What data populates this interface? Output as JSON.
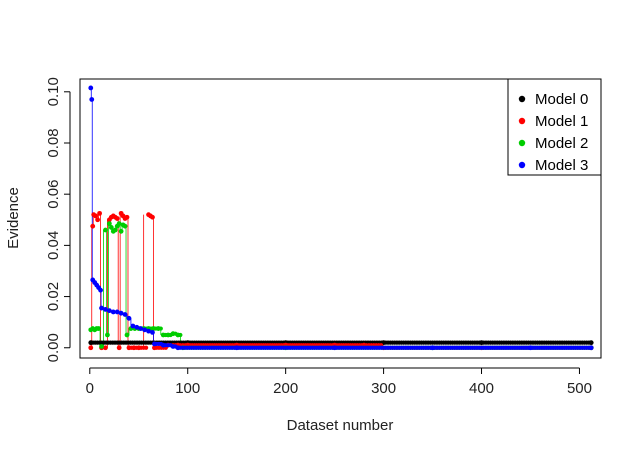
{
  "chart_data": {
    "type": "scatter",
    "xlabel": "Dataset number",
    "ylabel": "Evidence",
    "xlim": [
      -10,
      522
    ],
    "ylim": [
      -0.004,
      0.105
    ],
    "x_ticks": [
      0,
      100,
      200,
      300,
      400,
      500
    ],
    "x_tick_labels": [
      "0",
      "100",
      "200",
      "300",
      "400",
      "500"
    ],
    "y_ticks": [
      0.0,
      0.02,
      0.04,
      0.06,
      0.08,
      0.1
    ],
    "y_tick_labels": [
      "0.00",
      "0.02",
      "0.04",
      "0.06",
      "0.08",
      "0.10"
    ],
    "n_datasets": 512,
    "legend_position": "top-right",
    "series": [
      {
        "name": "Model 0",
        "color": "#000000",
        "points": [
          [
            1,
            0.002
          ],
          [
            100,
            0.002
          ],
          [
            200,
            0.002
          ],
          [
            300,
            0.002
          ],
          [
            400,
            0.002
          ],
          [
            512,
            0.002
          ]
        ]
      },
      {
        "name": "Model 1",
        "color": "#ff0000",
        "points": [
          [
            1,
            0.0
          ],
          [
            3,
            0.0475
          ],
          [
            4,
            0.052
          ],
          [
            6,
            0.0515
          ],
          [
            8,
            0.05
          ],
          [
            10,
            0.0525
          ],
          [
            12,
            0.0
          ],
          [
            16,
            0.0
          ],
          [
            20,
            0.05
          ],
          [
            22,
            0.051
          ],
          [
            24,
            0.0515
          ],
          [
            26,
            0.051
          ],
          [
            28,
            0.0505
          ],
          [
            30,
            0.0
          ],
          [
            32,
            0.0525
          ],
          [
            34,
            0.0515
          ],
          [
            36,
            0.0505
          ],
          [
            38,
            0.051
          ],
          [
            40,
            0.0
          ],
          [
            45,
            0.0
          ],
          [
            50,
            0.0
          ],
          [
            60,
            0.052
          ],
          [
            62,
            0.0515
          ],
          [
            64,
            0.051
          ],
          [
            66,
            0.0
          ],
          [
            80,
            0.001
          ],
          [
            90,
            0.001
          ],
          [
            100,
            0.001
          ],
          [
            150,
            0.001
          ],
          [
            200,
            0.001
          ],
          [
            250,
            0.001
          ],
          [
            280,
            0.001
          ],
          [
            300,
            0.0
          ],
          [
            400,
            0.0
          ],
          [
            512,
            0.0
          ]
        ]
      },
      {
        "name": "Model 2",
        "color": "#00cd00",
        "points": [
          [
            1,
            0.007
          ],
          [
            3,
            0.0075
          ],
          [
            5,
            0.007
          ],
          [
            7,
            0.0075
          ],
          [
            9,
            0.0075
          ],
          [
            12,
            0.0005
          ],
          [
            16,
            0.046
          ],
          [
            18,
            0.005
          ],
          [
            20,
            0.0485
          ],
          [
            22,
            0.047
          ],
          [
            24,
            0.0455
          ],
          [
            26,
            0.046
          ],
          [
            28,
            0.0475
          ],
          [
            30,
            0.0485
          ],
          [
            32,
            0.0455
          ],
          [
            34,
            0.048
          ],
          [
            36,
            0.0475
          ],
          [
            38,
            0.005
          ],
          [
            42,
            0.0075
          ],
          [
            46,
            0.0075
          ],
          [
            50,
            0.0075
          ],
          [
            55,
            0.0075
          ],
          [
            60,
            0.0075
          ],
          [
            65,
            0.0075
          ],
          [
            70,
            0.0075
          ],
          [
            75,
            0.005
          ],
          [
            80,
            0.005
          ],
          [
            85,
            0.0055
          ],
          [
            90,
            0.005
          ],
          [
            95,
            0.0
          ],
          [
            200,
            0.0
          ],
          [
            350,
            0.0
          ],
          [
            512,
            0.0
          ]
        ]
      },
      {
        "name": "Model 3",
        "color": "#0000ff",
        "points": [
          [
            1,
            0.1015
          ],
          [
            2,
            0.097
          ],
          [
            3,
            0.0265
          ],
          [
            5,
            0.0255
          ],
          [
            7,
            0.0245
          ],
          [
            9,
            0.0235
          ],
          [
            11,
            0.0225
          ],
          [
            12,
            0.0155
          ],
          [
            16,
            0.015
          ],
          [
            20,
            0.0145
          ],
          [
            24,
            0.014
          ],
          [
            28,
            0.014
          ],
          [
            32,
            0.0135
          ],
          [
            36,
            0.013
          ],
          [
            40,
            0.0115
          ],
          [
            44,
            0.0085
          ],
          [
            48,
            0.008
          ],
          [
            52,
            0.0075
          ],
          [
            56,
            0.007
          ],
          [
            60,
            0.0065
          ],
          [
            64,
            0.006
          ],
          [
            66,
            0.0015
          ],
          [
            75,
            0.001
          ],
          [
            85,
            0.0005
          ],
          [
            90,
            0.0
          ],
          [
            150,
            0.0
          ],
          [
            250,
            0.0
          ],
          [
            350,
            0.0
          ],
          [
            450,
            0.0
          ],
          [
            512,
            0.0
          ]
        ]
      }
    ]
  }
}
